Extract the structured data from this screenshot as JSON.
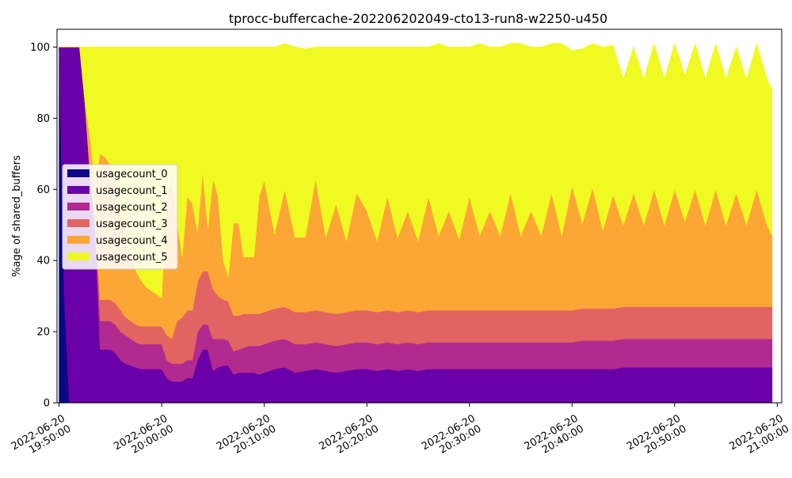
{
  "chart_data": {
    "type": "area",
    "stacked": true,
    "title": "tprocc-buffercache-202206202049-cto13-run8-w2250-u450",
    "xlabel": "",
    "ylabel": "%age of shared_buffers",
    "ylim": [
      0,
      105
    ],
    "xlim": [
      "2022-06-20 19:49:48",
      "2022-06-20 21:00:26"
    ],
    "yticks": [
      0,
      20,
      40,
      60,
      80,
      100
    ],
    "xticks": [
      {
        "date": "2022-06-20",
        "time": "19:50:00",
        "value": "2022-06-20 19:50:00"
      },
      {
        "date": "2022-06-20",
        "time": "20:00:00",
        "value": "2022-06-20 20:00:00"
      },
      {
        "date": "2022-06-20",
        "time": "20:10:00",
        "value": "2022-06-20 20:10:00"
      },
      {
        "date": "2022-06-20",
        "time": "20:20:00",
        "value": "2022-06-20 20:20:00"
      },
      {
        "date": "2022-06-20",
        "time": "20:30:00",
        "value": "2022-06-20 20:30:00"
      },
      {
        "date": "2022-06-20",
        "time": "20:40:00",
        "value": "2022-06-20 20:40:00"
      },
      {
        "date": "2022-06-20",
        "time": "20:50:00",
        "value": "2022-06-20 20:50:00"
      },
      {
        "date": "2022-06-20",
        "time": "21:00:00",
        "value": "2022-06-20 21:00:00"
      }
    ],
    "grid": false,
    "legend_position": "center-left",
    "x": [
      "2022-06-20 19:50:00",
      "2022-06-20 19:50:30",
      "2022-06-20 19:51:00",
      "2022-06-20 19:51:30",
      "2022-06-20 19:52:00",
      "2022-06-20 19:52:30",
      "2022-06-20 19:53:00",
      "2022-06-20 19:53:30",
      "2022-06-20 19:54:00",
      "2022-06-20 19:54:30",
      "2022-06-20 19:55:00",
      "2022-06-20 19:55:30",
      "2022-06-20 19:56:00",
      "2022-06-20 19:56:30",
      "2022-06-20 19:57:00",
      "2022-06-20 19:57:30",
      "2022-06-20 19:58:00",
      "2022-06-20 19:58:30",
      "2022-06-20 19:59:00",
      "2022-06-20 19:59:30",
      "2022-06-20 20:00:00",
      "2022-06-20 20:00:30",
      "2022-06-20 20:01:00",
      "2022-06-20 20:01:30",
      "2022-06-20 20:02:00",
      "2022-06-20 20:02:30",
      "2022-06-20 20:03:00",
      "2022-06-20 20:03:30",
      "2022-06-20 20:04:00",
      "2022-06-20 20:04:30",
      "2022-06-20 20:05:00",
      "2022-06-20 20:05:30",
      "2022-06-20 20:06:00",
      "2022-06-20 20:06:30",
      "2022-06-20 20:07:00",
      "2022-06-20 20:07:30",
      "2022-06-20 20:08:00",
      "2022-06-20 20:08:30",
      "2022-06-20 20:09:00",
      "2022-06-20 20:09:30",
      "2022-06-20 20:10:00",
      "2022-06-20 20:11:00",
      "2022-06-20 20:12:00",
      "2022-06-20 20:13:00",
      "2022-06-20 20:14:00",
      "2022-06-20 20:15:00",
      "2022-06-20 20:16:00",
      "2022-06-20 20:17:00",
      "2022-06-20 20:18:00",
      "2022-06-20 20:19:00",
      "2022-06-20 20:20:00",
      "2022-06-20 20:21:00",
      "2022-06-20 20:22:00",
      "2022-06-20 20:23:00",
      "2022-06-20 20:24:00",
      "2022-06-20 20:25:00",
      "2022-06-20 20:26:00",
      "2022-06-20 20:27:00",
      "2022-06-20 20:28:00",
      "2022-06-20 20:29:00",
      "2022-06-20 20:30:00",
      "2022-06-20 20:31:00",
      "2022-06-20 20:32:00",
      "2022-06-20 20:33:00",
      "2022-06-20 20:34:00",
      "2022-06-20 20:35:00",
      "2022-06-20 20:36:00",
      "2022-06-20 20:37:00",
      "2022-06-20 20:38:00",
      "2022-06-20 20:39:00",
      "2022-06-20 20:40:00",
      "2022-06-20 20:41:00",
      "2022-06-20 20:42:00",
      "2022-06-20 20:43:00",
      "2022-06-20 20:44:00",
      "2022-06-20 20:45:00",
      "2022-06-20 20:46:00",
      "2022-06-20 20:47:00",
      "2022-06-20 20:48:00",
      "2022-06-20 20:49:00",
      "2022-06-20 20:50:00",
      "2022-06-20 20:51:00",
      "2022-06-20 20:52:00",
      "2022-06-20 20:53:00",
      "2022-06-20 20:54:00",
      "2022-06-20 20:55:00",
      "2022-06-20 20:56:00",
      "2022-06-20 20:57:00",
      "2022-06-20 20:58:00",
      "2022-06-20 20:59:00",
      "2022-06-20 20:59:30"
    ],
    "series": [
      {
        "name": "usagecount_0",
        "color": "#0d0887",
        "values": [
          100,
          30,
          0,
          0,
          0,
          0,
          0,
          0,
          0,
          0,
          0,
          0,
          0,
          0,
          0,
          0,
          0,
          0,
          0,
          0,
          0,
          0,
          0,
          0,
          0,
          0,
          0,
          0,
          0,
          0,
          0,
          0,
          0,
          0,
          0,
          0,
          0,
          0,
          0,
          0,
          0,
          0,
          0,
          0,
          0,
          0,
          0,
          0,
          0,
          0,
          0,
          0,
          0,
          0,
          0,
          0,
          0,
          0,
          0,
          0,
          0,
          0,
          0,
          0,
          0,
          0,
          0,
          0,
          0,
          0,
          0,
          0,
          0,
          0,
          0,
          0,
          0,
          0,
          0,
          0,
          0,
          0,
          0,
          0,
          0,
          0,
          0,
          0,
          0,
          0,
          0
        ]
      },
      {
        "name": "usagecount_1",
        "color": "#6a00a8",
        "values": [
          0,
          70,
          100,
          100,
          100,
          85,
          65,
          50,
          15,
          15,
          15,
          14,
          12,
          11,
          10.5,
          10,
          9.5,
          9.5,
          9.5,
          9.5,
          9.5,
          7,
          6,
          6,
          6,
          7,
          7,
          12,
          15,
          15,
          9,
          10,
          10.5,
          10.5,
          8,
          8.5,
          8.5,
          8.5,
          8.5,
          8,
          8.5,
          9.5,
          10,
          8.5,
          9,
          9.5,
          9,
          8.5,
          9,
          9.5,
          9.5,
          9,
          9.5,
          9,
          9.5,
          9,
          9.5,
          9.5,
          9.5,
          9.5,
          9.5,
          9.5,
          9.5,
          9.5,
          9.5,
          9.5,
          9.5,
          9.5,
          9.5,
          9.5,
          9.5,
          9.5,
          9.5,
          9.5,
          9.5,
          10,
          10,
          10,
          10,
          10,
          10,
          10,
          10,
          10,
          10,
          10,
          10,
          10,
          10,
          10,
          10
        ]
      },
      {
        "name": "usagecount_2",
        "color": "#b12a90",
        "values": [
          0,
          0,
          0,
          0,
          0,
          0,
          0,
          0,
          8,
          8,
          8,
          8,
          8,
          8,
          7.5,
          7,
          7,
          7,
          7,
          7,
          7,
          5,
          5,
          5,
          5,
          5,
          5,
          8,
          7,
          7,
          9,
          8,
          7.5,
          7,
          6.5,
          6.5,
          7,
          7.5,
          7.5,
          8,
          8,
          8,
          8,
          8,
          7.5,
          7.5,
          7.5,
          7.5,
          7.5,
          7.5,
          7.5,
          7.5,
          7.5,
          7.5,
          7.5,
          7.5,
          7.5,
          7.5,
          7.5,
          7.5,
          7.5,
          7.5,
          7.5,
          7.5,
          7.5,
          7.5,
          7.5,
          7.5,
          7.5,
          7.5,
          7.5,
          8,
          8,
          8,
          8,
          8,
          8,
          8,
          8,
          8,
          8,
          8,
          8,
          8,
          8,
          8,
          8,
          8,
          8,
          8,
          8
        ]
      },
      {
        "name": "usagecount_3",
        "color": "#e16462",
        "values": [
          0,
          0,
          0,
          0,
          0,
          0,
          0,
          0,
          6,
          6,
          6,
          6,
          6,
          5,
          5,
          5,
          5,
          5,
          5,
          5,
          5,
          7,
          7,
          12,
          13,
          14,
          14,
          14,
          15,
          15,
          14,
          12,
          11,
          11,
          10,
          9.5,
          9.5,
          9,
          9,
          9,
          9,
          9,
          9,
          9,
          9,
          9,
          9,
          9,
          9,
          9,
          9,
          9,
          9,
          9,
          9,
          9,
          9,
          9,
          9,
          9,
          9,
          9,
          9,
          9,
          9,
          9,
          9,
          9,
          9,
          9,
          9,
          9,
          9,
          9,
          9,
          9,
          9,
          9,
          9,
          9,
          9,
          9,
          9,
          9,
          9,
          9,
          9,
          9,
          9,
          9,
          9
        ]
      },
      {
        "name": "usagecount_4",
        "color": "#fca636",
        "values": [
          0,
          0,
          0,
          0,
          0,
          0,
          10,
          12,
          41,
          40,
          38,
          35,
          28,
          23,
          18,
          15,
          13,
          11,
          10,
          9,
          8,
          40,
          45,
          28,
          17,
          32,
          30,
          14,
          28,
          12,
          31,
          28,
          11,
          7,
          26,
          26,
          16,
          16,
          16,
          33,
          37,
          21,
          33,
          21,
          21,
          37,
          21,
          31,
          20,
          33,
          28,
          20,
          32,
          21,
          28,
          20,
          32,
          21,
          28,
          20,
          32,
          21,
          28,
          21,
          33,
          21,
          28,
          21,
          33,
          21,
          35,
          24,
          34,
          22,
          32,
          23,
          32,
          23,
          33,
          23,
          33,
          24,
          33,
          23,
          33,
          23,
          32,
          23,
          33,
          23,
          20
        ]
      },
      {
        "name": "usagecount_5",
        "color": "#f0f921",
        "values": [
          0,
          0,
          0,
          0,
          0,
          15,
          25,
          38,
          30,
          31,
          33,
          37,
          46,
          53,
          59,
          63,
          65.5,
          67.5,
          68.5,
          69.5,
          70.5,
          41,
          37,
          49,
          59,
          42,
          44,
          52,
          35,
          51,
          37,
          42,
          60,
          64.5,
          49.5,
          49.5,
          59,
          59,
          59,
          42,
          37.5,
          52.5,
          41,
          53.5,
          53,
          37,
          53.5,
          44,
          54.5,
          41,
          46,
          54.5,
          42,
          53.5,
          46,
          54.5,
          42,
          54,
          46,
          54,
          42,
          54,
          46,
          53,
          42,
          54,
          46,
          53,
          42,
          54,
          38,
          49,
          40.5,
          51.5,
          42,
          41,
          41,
          41,
          41,
          41,
          41,
          41,
          41,
          41,
          41,
          41,
          41,
          41,
          41,
          41,
          41
        ]
      }
    ]
  }
}
